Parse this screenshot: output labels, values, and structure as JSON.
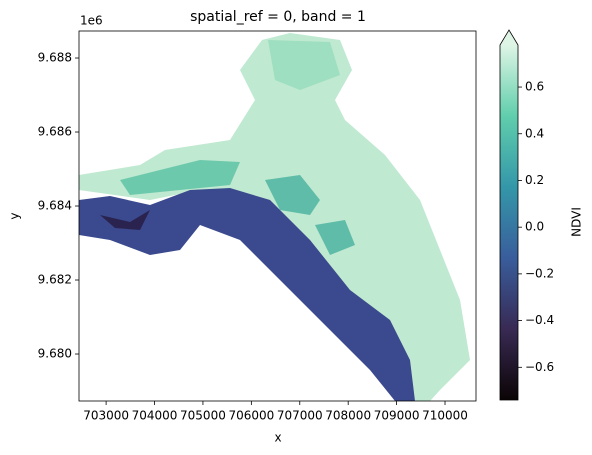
{
  "chart_data": {
    "type": "raster",
    "title": "spatial_ref = 0, band = 1",
    "xlabel": "x",
    "ylabel": "y",
    "y_offset_text": "1e6",
    "xlim": [
      702440,
      710640
    ],
    "xticks": [
      703000,
      704000,
      705000,
      706000,
      707000,
      708000,
      709000,
      710000
    ],
    "ylim": [
      9678730,
      9688730
    ],
    "yticks": [
      {
        "value": 9680000,
        "label": "9.680"
      },
      {
        "value": 9682000,
        "label": "9.682"
      },
      {
        "value": 9684000,
        "label": "9.684"
      },
      {
        "value": 9686000,
        "label": "9.686"
      },
      {
        "value": 9688000,
        "label": "9.688"
      }
    ],
    "colorbar": {
      "label": "NDVI",
      "lim": [
        -0.74,
        0.78
      ],
      "extend": "max",
      "colormap": [
        "#0b0405",
        "#382a54",
        "#395d9c",
        "#3497a9",
        "#60ceac",
        "#def5e5"
      ],
      "ticks": [
        {
          "value": -0.6,
          "label": "−0.6"
        },
        {
          "value": -0.4,
          "label": "−0.4"
        },
        {
          "value": -0.2,
          "label": "−0.2"
        },
        {
          "value": 0,
          "label": "0.0"
        },
        0.2,
        0.4,
        0.6
      ]
    }
  }
}
